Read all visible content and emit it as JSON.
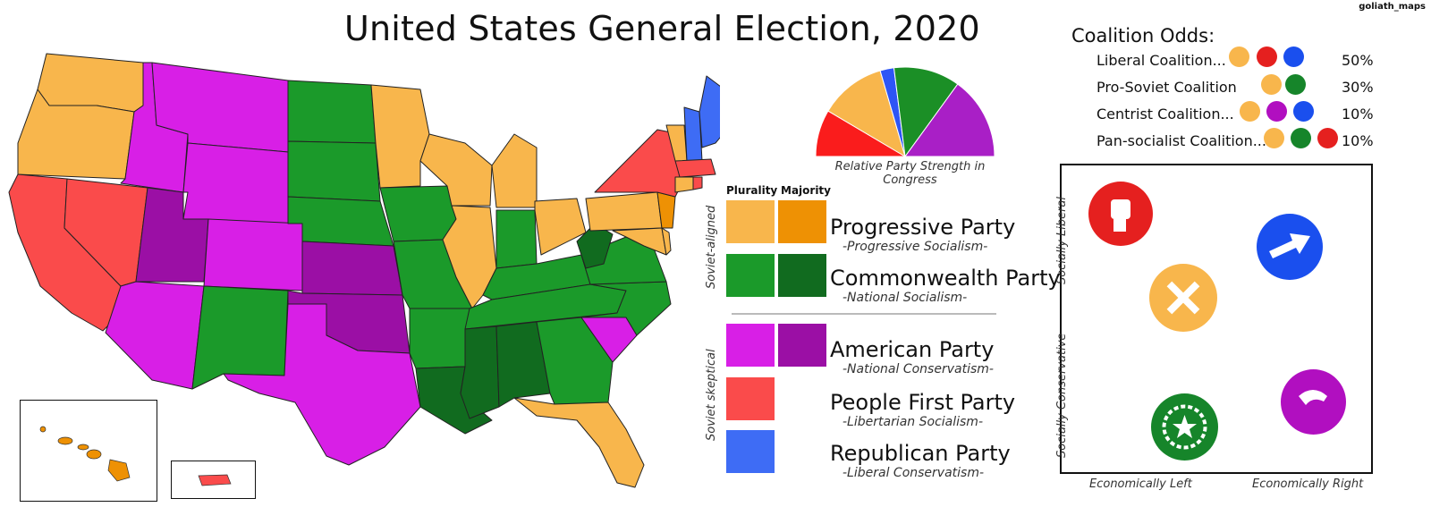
{
  "title": "United States General Election, 2020",
  "credit": "goliath_maps",
  "colors": {
    "progressive_plurality": "#f8b64c",
    "progressive_majority": "#ee9104",
    "commonwealth_plurality": "#1b9a2a",
    "commonwealth_majority": "#116b1f",
    "american_plurality": "#d81fe6",
    "american_majority": "#9b0fa5",
    "people_first": "#fa4b4b",
    "republican": "#3e6cf5",
    "liberal_icon": "#e5201f",
    "progressive_icon": "#f8b64c",
    "commonwealth_icon": "#16852a",
    "american_icon": "#b10fc0",
    "republican_icon": "#1a4fee"
  },
  "congress_chart": {
    "caption": "Relative Party Strength in Congress",
    "slices": [
      {
        "party": "People First Party",
        "share": 0.17,
        "color": "#fa1c1c"
      },
      {
        "party": "Progressive Party",
        "share": 0.24,
        "color": "#f8b64c"
      },
      {
        "party": "Republican Party",
        "share": 0.05,
        "color": "#2d55f5"
      },
      {
        "party": "Commonwealth Party",
        "share": 0.24,
        "color": "#1b8f26"
      },
      {
        "party": "American Party",
        "share": 0.3,
        "color": "#a91fc6"
      }
    ]
  },
  "legend": {
    "plurality_header": "Plurality",
    "majority_header": "Majority",
    "soviet_aligned_label": "Soviet-aligned",
    "soviet_skeptical_label": "Soviet skeptical",
    "parties": [
      {
        "name": "Progressive Party",
        "ideology": "-Progressive Socialism-"
      },
      {
        "name": "Commonwealth Party",
        "ideology": "-National Socialism-"
      },
      {
        "name": "American Party",
        "ideology": "-National Conservatism-"
      },
      {
        "name": "People First Party",
        "ideology": "-Libertarian Socialism-"
      },
      {
        "name": "Republican Party",
        "ideology": "-Liberal Conservatism-"
      }
    ]
  },
  "coalitions": {
    "title": "Coalition Odds:",
    "rows": [
      {
        "label": "Liberal Coalition...",
        "odds": "50%",
        "icons": [
          "hammer-wrench-icon",
          "fist-icon",
          "arrow-icon"
        ]
      },
      {
        "label": "Pro-Soviet Coalition",
        "odds": "30%",
        "icons": [
          "hammer-wrench-icon",
          "star-wreath-icon"
        ]
      },
      {
        "label": "Centrist Coalition...",
        "odds": "10%",
        "icons": [
          "hammer-wrench-icon",
          "eagle-icon",
          "arrow-icon"
        ]
      },
      {
        "label": "Pan-socialist Coalition...",
        "odds": "10%",
        "icons": [
          "hammer-wrench-icon",
          "star-wreath-icon",
          "fist-icon"
        ]
      }
    ]
  },
  "compass": {
    "x_left_label": "Economically Left",
    "x_right_label": "Economically Right",
    "y_top_label": "Socially Liberal",
    "y_bottom_label": "Socially Conservative",
    "parties": [
      {
        "party": "People First Party",
        "icon": "fist-icon"
      },
      {
        "party": "Republican Party",
        "icon": "arrow-icon"
      },
      {
        "party": "Progressive Party",
        "icon": "hammer-wrench-icon"
      },
      {
        "party": "American Party",
        "icon": "eagle-icon"
      },
      {
        "party": "Commonwealth Party",
        "icon": "star-wreath-icon"
      }
    ]
  }
}
